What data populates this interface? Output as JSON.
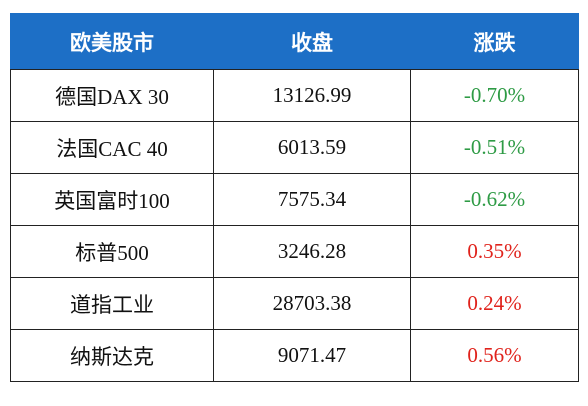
{
  "table": {
    "header": [
      "欧美股市",
      "收盘",
      "涨跌"
    ],
    "rows": [
      [
        "德国DAX 30",
        "13126.99",
        "-0.70%"
      ],
      [
        "法国CAC 40",
        "6013.59",
        "-0.51%"
      ],
      [
        "英国富时100",
        "7575.34",
        "-0.62%"
      ],
      [
        "标普500",
        "3246.28",
        "0.35%"
      ],
      [
        "道指工业",
        "28703.38",
        "0.24%"
      ],
      [
        "纳斯达克",
        "9071.47",
        "0.56%"
      ]
    ]
  }
}
